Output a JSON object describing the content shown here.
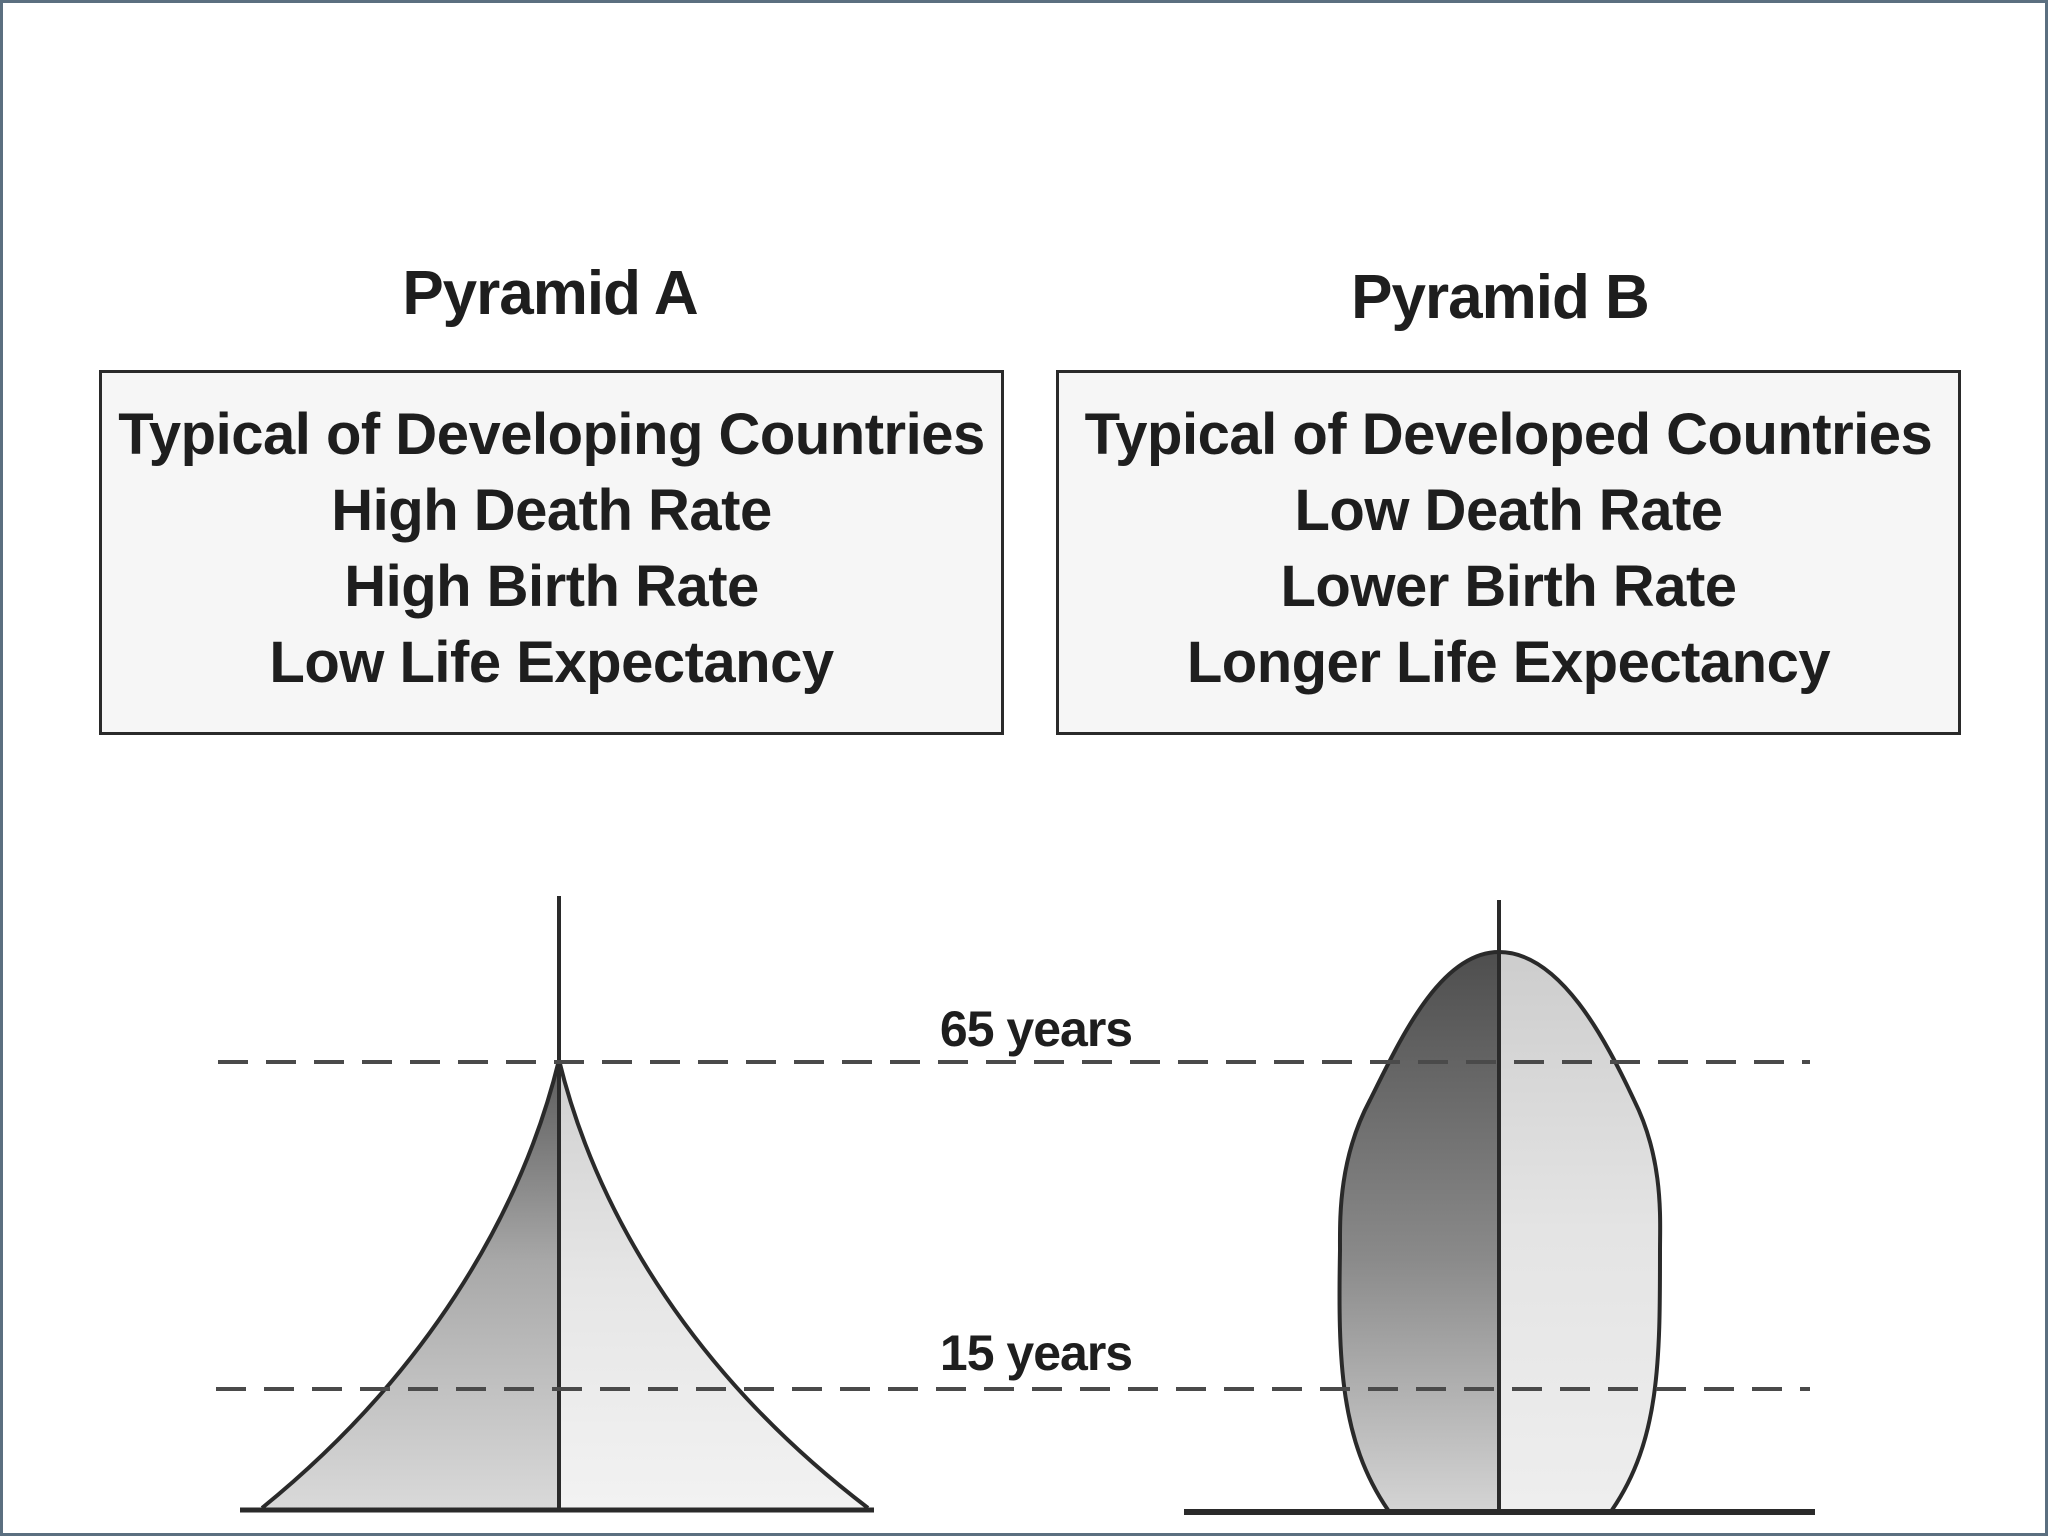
{
  "pyramid_a": {
    "title": "Pyramid A",
    "lines": [
      "Typical of Developing Countries",
      "High Death Rate",
      "High Birth Rate",
      "Low Life Expectancy"
    ]
  },
  "pyramid_b": {
    "title": "Pyramid B",
    "lines": [
      "Typical of Developed Countries",
      "Low Death Rate",
      "Lower Birth Rate",
      "Longer Life Expectancy"
    ]
  },
  "age_markers": {
    "upper": "65 years",
    "lower": "15 years"
  },
  "colors": {
    "frame": "#5b6f80",
    "ink": "#1e1e1e",
    "shade_dark": "#6e6e6e",
    "shade_light": "#f2f2f2"
  }
}
